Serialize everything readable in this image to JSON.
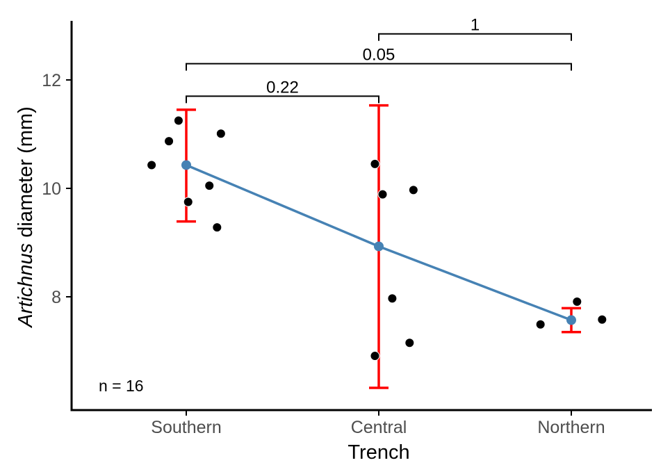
{
  "chart_data": {
    "type": "scatter",
    "xlabel": "Trench",
    "ylabel_italic": "Artichnus",
    "ylabel_rest": " diameter (mm)",
    "categories": [
      "Southern",
      "Central",
      "Northern"
    ],
    "ylim": [
      6.0,
      13.2
    ],
    "yticks": [
      8,
      10,
      12
    ],
    "ytick_labels": [
      "8",
      "10",
      "12"
    ],
    "points": [
      {
        "category": 0,
        "jitter": -0.18,
        "y": 10.43
      },
      {
        "category": 0,
        "jitter": -0.09,
        "y": 10.87
      },
      {
        "category": 0,
        "jitter": -0.04,
        "y": 11.25
      },
      {
        "category": 0,
        "jitter": 0.01,
        "y": 9.75
      },
      {
        "category": 0,
        "jitter": 0.12,
        "y": 10.05
      },
      {
        "category": 0,
        "jitter": 0.16,
        "y": 9.28
      },
      {
        "category": 0,
        "jitter": 0.18,
        "y": 11.01
      },
      {
        "category": 1,
        "jitter": -0.02,
        "y": 10.45
      },
      {
        "category": 1,
        "jitter": 0.02,
        "y": 9.89
      },
      {
        "category": 1,
        "jitter": 0.18,
        "y": 9.97
      },
      {
        "category": 1,
        "jitter": 0.07,
        "y": 7.97
      },
      {
        "category": 1,
        "jitter": 0.16,
        "y": 7.15
      },
      {
        "category": 1,
        "jitter": -0.02,
        "y": 6.91
      },
      {
        "category": 2,
        "jitter": 0.03,
        "y": 7.91
      },
      {
        "category": 2,
        "jitter": -0.16,
        "y": 7.49
      },
      {
        "category": 2,
        "jitter": 0.16,
        "y": 7.58
      }
    ],
    "means": [
      10.43,
      8.93,
      7.57
    ],
    "error_bars": [
      {
        "low": 9.39,
        "high": 11.45
      },
      {
        "low": 6.32,
        "high": 11.53
      },
      {
        "low": 7.35,
        "high": 7.79
      }
    ],
    "comparisons": [
      {
        "from": 0,
        "to": 1,
        "y": 11.7,
        "label": "0.22"
      },
      {
        "from": 0,
        "to": 2,
        "y": 12.3,
        "label": "0.05"
      },
      {
        "from": 1,
        "to": 2,
        "y": 12.85,
        "label": "1"
      }
    ],
    "annotation": "n = 16",
    "colors": {
      "points": "#000000",
      "point_outline": "#ffffff",
      "mean_line": "#4682b4",
      "error_bars": "#ff0000",
      "brackets": "#000000",
      "axis": "#000000"
    }
  }
}
